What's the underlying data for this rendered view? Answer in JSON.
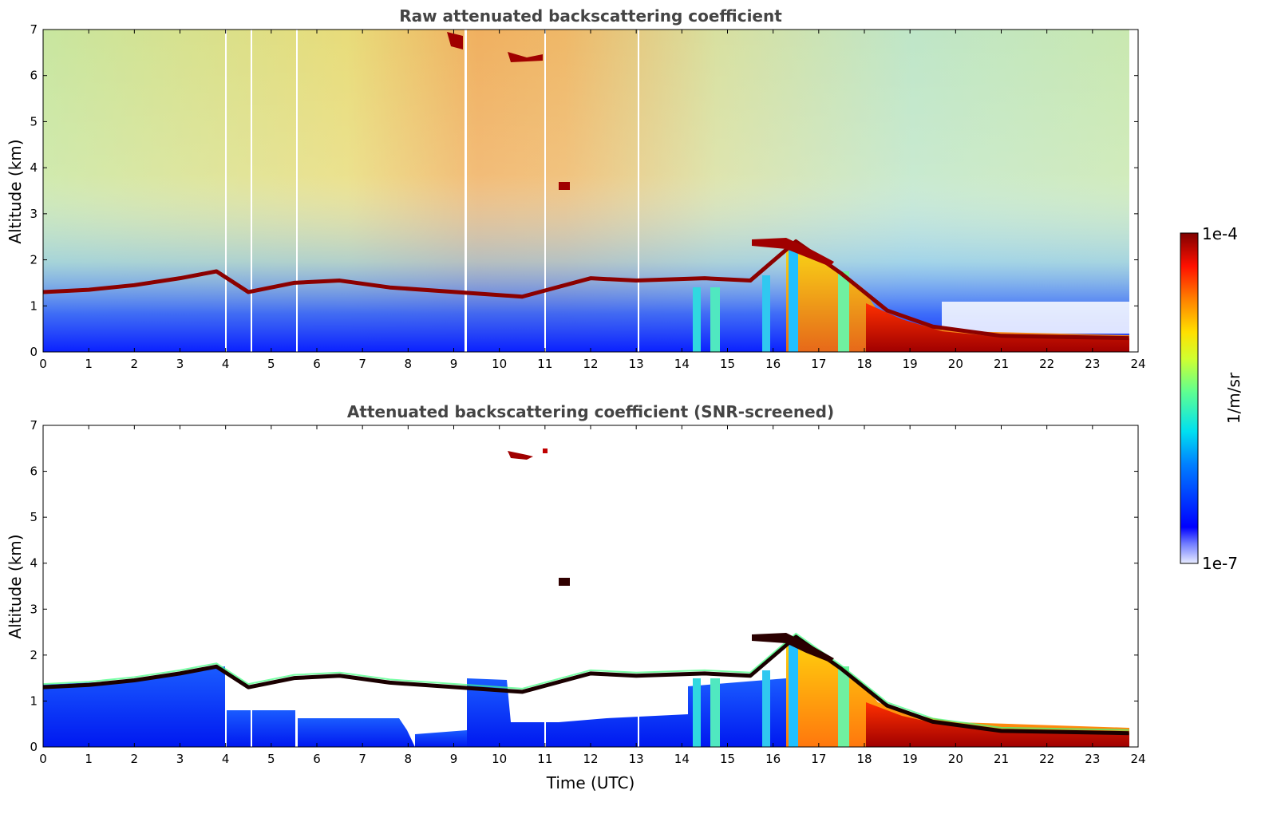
{
  "chart_data": [
    {
      "type": "heatmap",
      "title": "Raw attenuated backscattering coefficient",
      "xlabel": "",
      "ylabel": "Altitude (km)",
      "xlim": [
        0,
        24
      ],
      "ylim": [
        0,
        7
      ],
      "xticks": [
        "0",
        "1",
        "2",
        "3",
        "4",
        "5",
        "6",
        "7",
        "8",
        "9",
        "10",
        "11",
        "12",
        "13",
        "14",
        "15",
        "16",
        "17",
        "18",
        "19",
        "20",
        "21",
        "22",
        "23",
        "24"
      ],
      "yticks": [
        "0",
        "1",
        "2",
        "3",
        "4",
        "5",
        "6",
        "7"
      ],
      "data_end_time": 23.8,
      "layer_heights": [
        {
          "time": 0,
          "km": 1.3
        },
        {
          "time": 1,
          "km": 1.35
        },
        {
          "time": 2,
          "km": 1.45
        },
        {
          "time": 3,
          "km": 1.6
        },
        {
          "time": 3.8,
          "km": 1.75
        },
        {
          "time": 4.5,
          "km": 1.3
        },
        {
          "time": 5.5,
          "km": 1.5
        },
        {
          "time": 6.5,
          "km": 1.55
        },
        {
          "time": 7.6,
          "km": 1.4
        },
        {
          "time": 10.5,
          "km": 1.2
        },
        {
          "time": 12,
          "km": 1.6
        },
        {
          "time": 13,
          "km": 1.55
        },
        {
          "time": 14.5,
          "km": 1.6
        },
        {
          "time": 15.5,
          "km": 1.55
        },
        {
          "time": 16.5,
          "km": 2.4
        },
        {
          "time": 17.5,
          "km": 1.7
        },
        {
          "time": 18.5,
          "km": 0.9
        },
        {
          "time": 19.5,
          "km": 0.55
        },
        {
          "time": 21,
          "km": 0.35
        },
        {
          "time": 23.8,
          "km": 0.3
        }
      ],
      "grid": false
    },
    {
      "type": "heatmap",
      "title": "Attenuated backscattering coefficient (SNR-screened)",
      "xlabel": "Time (UTC)",
      "ylabel": "Altitude (km)",
      "xlim": [
        0,
        24
      ],
      "ylim": [
        0,
        7
      ],
      "xticks": [
        "0",
        "1",
        "2",
        "3",
        "4",
        "5",
        "6",
        "7",
        "8",
        "9",
        "10",
        "11",
        "12",
        "13",
        "14",
        "15",
        "16",
        "17",
        "18",
        "19",
        "20",
        "21",
        "22",
        "23",
        "24"
      ],
      "yticks": [
        "0",
        "1",
        "2",
        "3",
        "4",
        "5",
        "6",
        "7"
      ],
      "data_end_time": 23.8,
      "grid": false
    }
  ],
  "colorbar": {
    "label": "1/m/sr",
    "max_label": "1e-4",
    "min_label": "1e-7",
    "colormap": "jet",
    "min_color": "#e8ecff",
    "max_color": "#7f0000"
  }
}
